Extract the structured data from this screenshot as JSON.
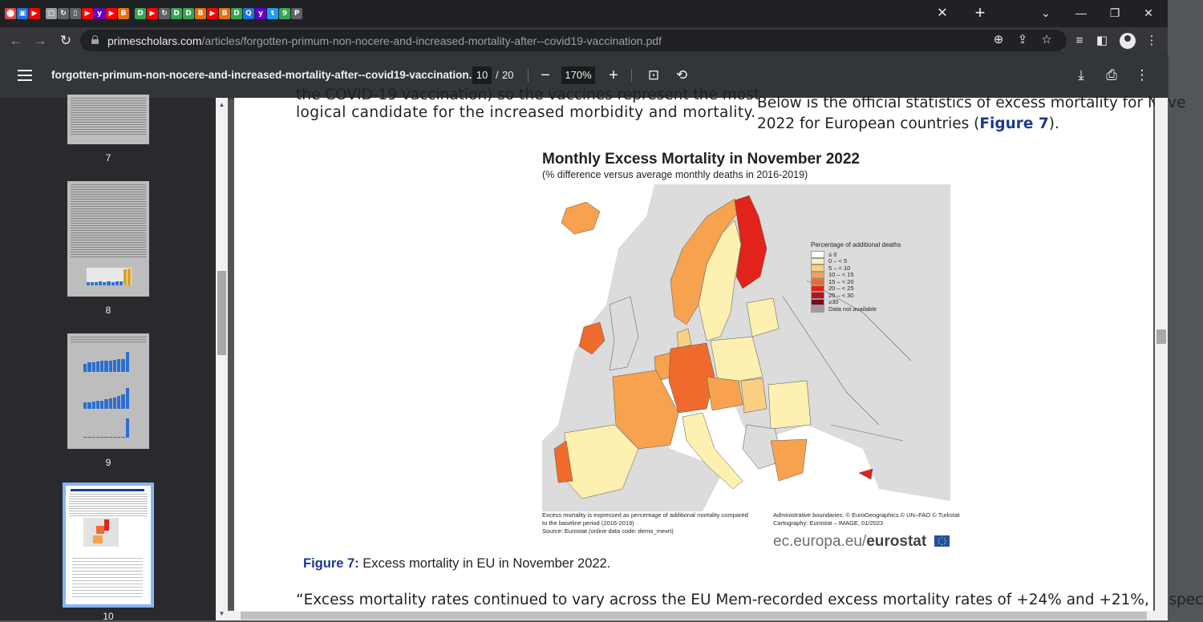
{
  "browser": {
    "tab_favicons": [
      {
        "name": "chrome-tab-favicon",
        "color": "#e8453c",
        "glyph": "⬤"
      },
      {
        "name": "app-tab-favicon",
        "color": "#1a73e8",
        "glyph": "▣"
      },
      {
        "name": "youtube-tab-favicon",
        "color": "#ff0000",
        "glyph": "▶"
      },
      {
        "name": "document-tab-favicon",
        "color": "#9aa0a6",
        "glyph": "▢"
      },
      {
        "name": "reload-tab-favicon",
        "color": "#5f6368",
        "glyph": "↻"
      },
      {
        "name": "phone-tab-favicon",
        "color": "#5f6368",
        "glyph": "▯"
      },
      {
        "name": "youtube-tab-favicon",
        "color": "#ff0000",
        "glyph": "▶"
      },
      {
        "name": "yahoo-tab-favicon",
        "color": "#6001d2",
        "glyph": "y"
      },
      {
        "name": "youtube-tab-favicon",
        "color": "#ff0000",
        "glyph": "▶"
      },
      {
        "name": "bookmark-tab-favicon",
        "color": "#e8710a",
        "glyph": "B"
      },
      {
        "name": "play-tab-favicon",
        "color": "#34a853",
        "glyph": "D"
      },
      {
        "name": "youtube-tab-favicon",
        "color": "#ff0000",
        "glyph": "▶"
      },
      {
        "name": "reload-tab-favicon",
        "color": "#5f6368",
        "glyph": "↻"
      },
      {
        "name": "play-tab-favicon",
        "color": "#34a853",
        "glyph": "D"
      },
      {
        "name": "play-tab-favicon",
        "color": "#34a853",
        "glyph": "D"
      },
      {
        "name": "bookmark-tab-favicon",
        "color": "#e8710a",
        "glyph": "B"
      },
      {
        "name": "youtube-tab-favicon",
        "color": "#ff0000",
        "glyph": "▶"
      },
      {
        "name": "bookmark-tab-favicon",
        "color": "#e8710a",
        "glyph": "B"
      },
      {
        "name": "play-tab-favicon",
        "color": "#34a853",
        "glyph": "D"
      },
      {
        "name": "search-tab-favicon",
        "color": "#1a73e8",
        "glyph": "Q"
      },
      {
        "name": "yahoo-tab-favicon",
        "color": "#6001d2",
        "glyph": "y"
      },
      {
        "name": "twitter-tab-favicon",
        "color": "#1d9bf0",
        "glyph": "t"
      },
      {
        "name": "sheets-tab-favicon",
        "color": "#34a853",
        "glyph": "9"
      },
      {
        "name": "pdf-tab-favicon",
        "color": "#5f6368",
        "glyph": "P"
      }
    ],
    "url_host": "primescholars.com",
    "url_path": "/articles/forgotten-primum-non-nocere-and-increased-mortality-after--covid19-vaccination.pdf"
  },
  "pdf_toolbar": {
    "title": "forgotten-primum-non-nocere-and-increased-mortality-after--covid19-vaccination.pdf",
    "current_page": "10",
    "page_separator": "/",
    "total_pages": "20",
    "zoom": "170%"
  },
  "thumbnails": [
    {
      "page": "7"
    },
    {
      "page": "8"
    },
    {
      "page": "9"
    },
    {
      "page": "10"
    }
  ],
  "document": {
    "left_top_partial": "the COVID-19 vaccination) so the vaccines represent the most",
    "left_line2": "logical candidate for the increased morbidity and mortality.",
    "right_line1": "Below is the official statistics of excess mortality for Nove",
    "right_line2_pre": "2022 for European countries (",
    "right_line2_ref": "Figure 7",
    "right_line2_post": ").",
    "figure": {
      "title": "Monthly Excess Mortality in November 2022",
      "subtitle": "(% difference versus average monthly deaths in 2016-2019)",
      "legend_title": "Percentage of additional deaths",
      "legend": [
        {
          "label": "≤ 0",
          "color": "#ffffff"
        },
        {
          "label": "0 – < 5",
          "color": "#fdf0b0"
        },
        {
          "label": "5 – < 10",
          "color": "#f9cf82"
        },
        {
          "label": "10 – < 15",
          "color": "#f6a24e"
        },
        {
          "label": "15 – < 20",
          "color": "#ee6b2d"
        },
        {
          "label": "20 – < 25",
          "color": "#e2231a"
        },
        {
          "label": "25 – < 30",
          "color": "#b5121b"
        },
        {
          "label": "≥30",
          "color": "#7a0c14"
        },
        {
          "label": "Data not available",
          "color": "#9d9d9d"
        }
      ],
      "note_left_1": "Excess mortality is expressed as percentage of additional mortality compared",
      "note_left_2": "to the baseline period (2016-2019)",
      "note_left_3": "Source: Eurostat (online data code: demo_mexrt)",
      "note_right_1": "Administrative boundaries: © EuroGeographics © UN–FAO © Turkstat",
      "note_right_2": "Cartography: Eurostat – IMAGE, 01/2023",
      "brand_pre": "ec.europa.eu/",
      "brand_bold": "eurostat"
    },
    "caption_ref": "Figure 7:",
    "caption_text": " Excess mortality in EU in November 2022.",
    "left_bottom": "“Excess mortality rates continued to vary across the EU Mem-",
    "right_bottom": "recorded excess mortality rates of +24% and +21%, respec"
  }
}
